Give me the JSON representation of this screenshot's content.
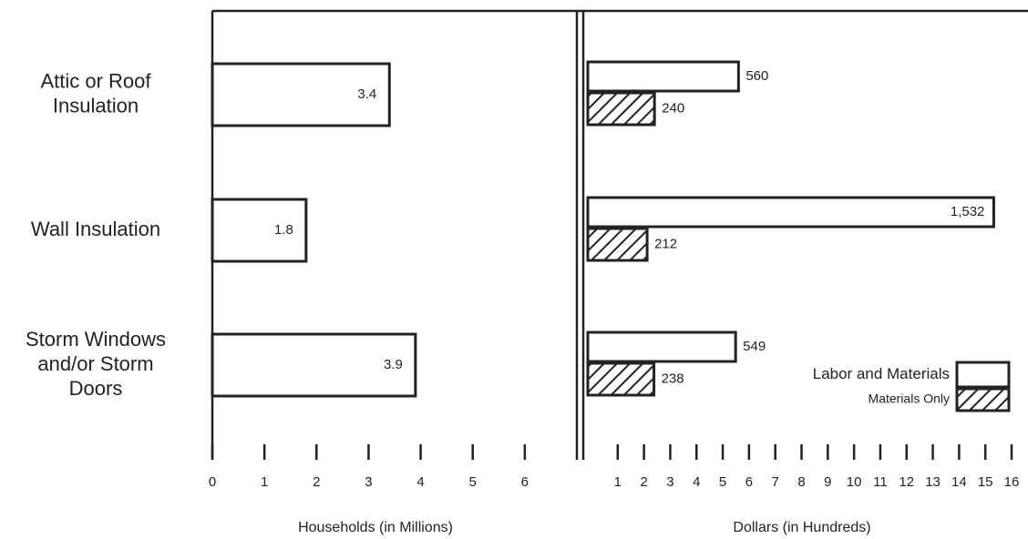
{
  "chart_data": [
    {
      "type": "hbar",
      "categories": [
        [
          "Attic or Roof",
          "Insulation"
        ],
        [
          "Wall Insulation"
        ],
        [
          "Storm Windows",
          "and/or Storm",
          "Doors"
        ]
      ],
      "values": [
        3.4,
        1.8,
        3.9
      ],
      "color": "#ffffff",
      "xlabel": "Households (in Millions)",
      "xlim": [
        0,
        7
      ],
      "xticks": [
        0,
        1,
        2,
        3,
        4,
        5,
        6
      ]
    },
    {
      "type": "grouped-hbar",
      "series": [
        {
          "name": "Labor and Materials",
          "color": "#ffffff",
          "hatch": false,
          "values": [
            5.6,
            15.32,
            5.49
          ],
          "value_labels": [
            "560",
            "1,532",
            "549"
          ]
        },
        {
          "name": "Materials Only",
          "color": "#222222",
          "hatch": true,
          "values": [
            2.4,
            2.12,
            2.38
          ],
          "value_labels": [
            "240",
            "212",
            "238"
          ]
        }
      ],
      "xlabel": "Dollars (in Hundreds)",
      "xlim": [
        0,
        16
      ],
      "xticks": [
        1,
        2,
        3,
        4,
        5,
        6,
        7,
        8,
        9,
        10,
        11,
        12,
        13,
        14,
        15,
        16
      ],
      "legend": "lower right"
    }
  ]
}
